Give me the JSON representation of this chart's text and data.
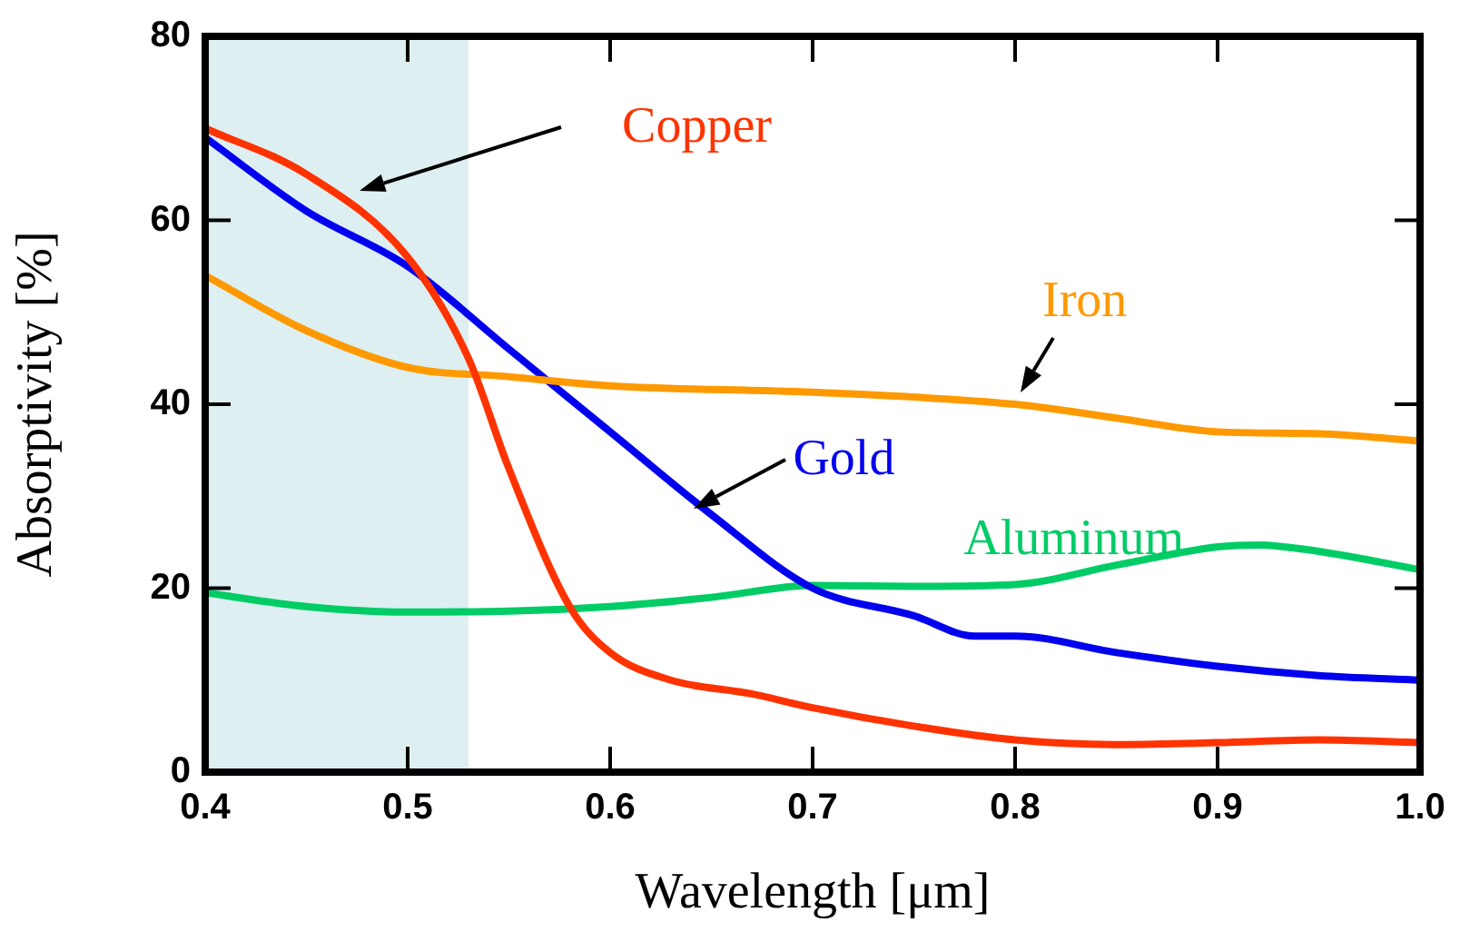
{
  "chart_data": {
    "type": "line",
    "xlabel": "Wavelength [μm]",
    "ylabel": "Absorptivity [%]",
    "xlim": [
      0.4,
      1.0
    ],
    "xticks": [
      0.4,
      0.5,
      0.6,
      0.7,
      0.8,
      0.9,
      {
        "value": 1.0,
        "label": "1.0"
      }
    ],
    "ylim": [
      0,
      80
    ],
    "yticks": [
      0,
      20,
      40,
      60,
      80
    ],
    "grid": false,
    "legend": false,
    "marker": "none",
    "line_style": "solid",
    "bands": [
      {
        "axis": "x",
        "from": 0.4,
        "to": 0.53,
        "color": "#ddeff0"
      }
    ],
    "series": [
      {
        "name": "Copper",
        "color": "#ff3300",
        "x": [
          0.4,
          0.45,
          0.5,
          0.53,
          0.55,
          0.58,
          0.6,
          0.63,
          0.67,
          0.7,
          0.75,
          0.8,
          0.85,
          0.9,
          0.95,
          1.0
        ],
        "values": [
          70,
          65,
          56,
          45,
          33,
          18,
          13,
          10,
          8.5,
          7,
          5,
          3.5,
          3,
          3.2,
          3.5,
          3.2
        ]
      },
      {
        "name": "Iron",
        "color": "#ff9900",
        "x": [
          0.4,
          0.45,
          0.5,
          0.55,
          0.6,
          0.7,
          0.8,
          0.85,
          0.9,
          0.95,
          1.0
        ],
        "values": [
          54,
          48,
          44,
          43,
          42,
          41.3,
          40,
          38.5,
          37,
          36.8,
          36
        ]
      },
      {
        "name": "Gold",
        "color": "#0000ee",
        "x": [
          0.4,
          0.45,
          0.5,
          0.55,
          0.6,
          0.65,
          0.7,
          0.75,
          0.78,
          0.8,
          0.85,
          0.9,
          0.95,
          1.0
        ],
        "values": [
          69,
          61,
          55,
          46,
          37,
          28,
          20,
          17,
          14.8,
          14.8,
          13,
          11.5,
          10.5,
          10
        ]
      },
      {
        "name": "Aluminum",
        "color": "#00cc66",
        "x": [
          0.4,
          0.45,
          0.5,
          0.55,
          0.6,
          0.65,
          0.7,
          0.75,
          0.8,
          0.85,
          0.9,
          0.92,
          0.95,
          1.0
        ],
        "values": [
          19.5,
          18,
          17.4,
          17.5,
          18,
          19,
          20.3,
          20.2,
          20.4,
          22.5,
          24.5,
          24.7,
          24,
          22
        ]
      }
    ]
  }
}
